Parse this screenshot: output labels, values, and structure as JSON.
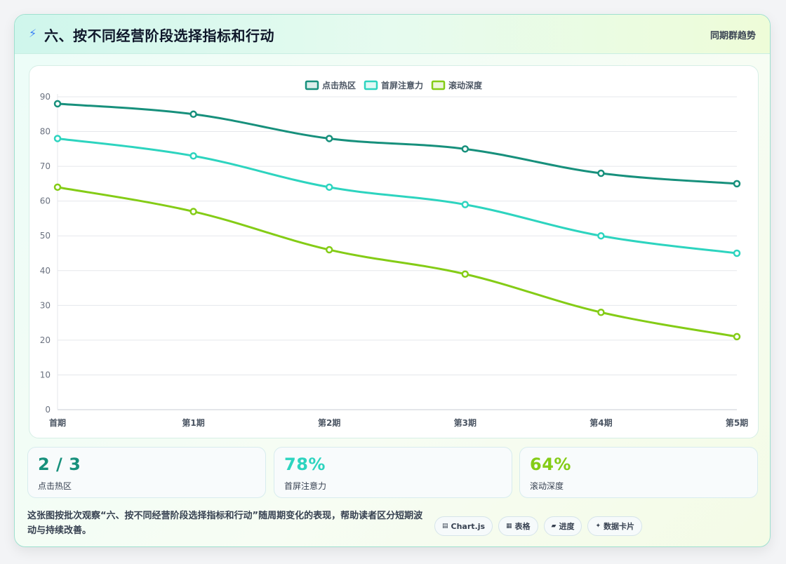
{
  "header": {
    "icon": "lightning-icon",
    "title": "六、按不同经营阶段选择指标和行动",
    "right_label": "同期群趋势"
  },
  "chart_data": {
    "type": "line",
    "categories": [
      "首期",
      "第1期",
      "第2期",
      "第3期",
      "第4期",
      "第5期"
    ],
    "series": [
      {
        "name": "点击热区",
        "color": "#17907c",
        "values": [
          88,
          85,
          78,
          75,
          68,
          65
        ]
      },
      {
        "name": "首屏注意力",
        "color": "#2dd4bf",
        "values": [
          78,
          73,
          64,
          59,
          50,
          45
        ]
      },
      {
        "name": "滚动深度",
        "color": "#84cc16",
        "values": [
          64,
          57,
          46,
          39,
          28,
          21
        ]
      }
    ],
    "ylim": [
      0,
      90
    ],
    "yticks": [
      "0",
      "10",
      "20",
      "30",
      "40",
      "50",
      "60",
      "70",
      "80",
      "90"
    ],
    "grid": true,
    "legend_position": "top-center",
    "xlabel": "",
    "ylabel": ""
  },
  "stats": [
    {
      "value": "2 / 3",
      "label": "点击热区",
      "color": "#17907c"
    },
    {
      "value": "78%",
      "label": "首屏注意力",
      "color": "#2dd4bf"
    },
    {
      "value": "64%",
      "label": "滚动深度",
      "color": "#84cc16"
    }
  ],
  "description": "这张图按批次观察“六、按不同经营阶段选择指标和行动”随周期变化的表现，帮助读者区分短期波动与持续改善。",
  "tags": [
    {
      "icon": "chart-icon",
      "glyph": "▤",
      "label": "Chart.js"
    },
    {
      "icon": "table-icon",
      "glyph": "▦",
      "label": "表格"
    },
    {
      "icon": "progress-icon",
      "glyph": "▰",
      "label": "进度"
    },
    {
      "icon": "sparkle-icon",
      "glyph": "✦",
      "label": "数据卡片"
    }
  ]
}
